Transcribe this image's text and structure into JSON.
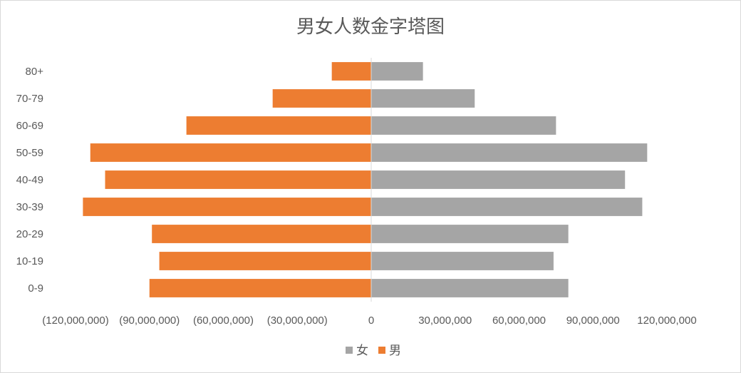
{
  "chart_data": {
    "type": "bar",
    "orientation": "horizontal",
    "title": "男女人数金字塔图",
    "categories": [
      "0-9",
      "10-19",
      "20-29",
      "30-39",
      "40-49",
      "50-59",
      "60-69",
      "70-79",
      "80+"
    ],
    "series": [
      {
        "name": "女",
        "color": "#a5a5a5",
        "values": [
          80000000,
          74000000,
          80000000,
          110000000,
          103000000,
          112000000,
          75000000,
          42000000,
          21000000
        ]
      },
      {
        "name": "男",
        "color": "#ed7d31",
        "values": [
          -90000000,
          -86000000,
          -89000000,
          -117000000,
          -108000000,
          -114000000,
          -75000000,
          -40000000,
          -16000000
        ]
      }
    ],
    "xlim": [
      -120000000,
      120000000
    ],
    "x_ticks": [
      {
        "label": "(120,000,000)",
        "value": -120000000,
        "color": "#ff0000"
      },
      {
        "label": "(90,000,000)",
        "value": -90000000,
        "color": "#ff0000"
      },
      {
        "label": "(60,000,000)",
        "value": -60000000,
        "color": "#ff0000"
      },
      {
        "label": "(30,000,000)",
        "value": -30000000,
        "color": "#ff0000"
      },
      {
        "label": "0",
        "value": 0,
        "color": "#595959"
      },
      {
        "label": "30,000,000",
        "value": 30000000,
        "color": "#595959"
      },
      {
        "label": "60,000,000",
        "value": 60000000,
        "color": "#595959"
      },
      {
        "label": "90,000,000",
        "value": 90000000,
        "color": "#595959"
      },
      {
        "label": "120,000,000",
        "value": 120000000,
        "color": "#595959"
      }
    ],
    "grid": false,
    "legend": {
      "position": "bottom",
      "entries": [
        "女",
        "男"
      ]
    }
  }
}
